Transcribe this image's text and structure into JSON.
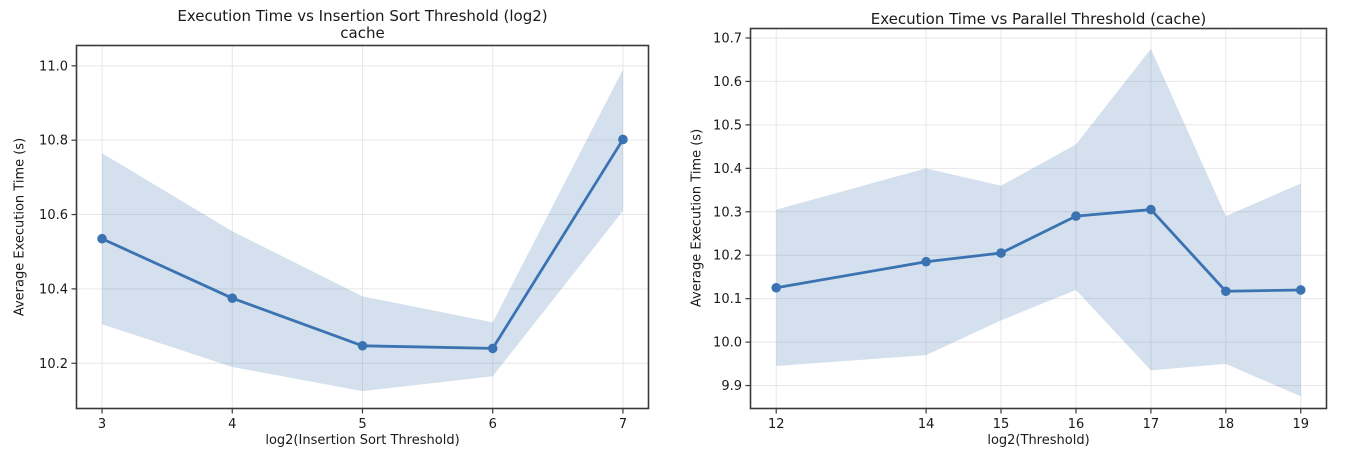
{
  "figure": {
    "background": "#ffffff",
    "grid_color": "#e7e7e7",
    "spine_color": "#3a3a3a",
    "text_color": "#1a1a1a"
  },
  "chart_data": [
    {
      "type": "line",
      "title": "Execution Time vs Insertion Sort Threshold (log2)",
      "subtitle": "cache",
      "xlabel": "log2(Insertion Sort Threshold)",
      "ylabel": "Average Execution Time (s)",
      "legend": null,
      "grid": true,
      "x": [
        3,
        4,
        5,
        6,
        7
      ],
      "y": [
        10.535,
        10.375,
        10.247,
        10.24,
        10.802
      ],
      "band_lower": [
        10.305,
        10.19,
        10.125,
        10.165,
        10.61
      ],
      "band_upper": [
        10.765,
        10.555,
        10.38,
        10.31,
        10.99
      ],
      "xlim": [
        2.8,
        7.2
      ],
      "ylim": [
        10.077,
        11.056
      ],
      "xticks": [
        3,
        4,
        5,
        6,
        7
      ],
      "xtick_labels": [
        "3",
        "4",
        "5",
        "6",
        "7"
      ],
      "yticks": [
        10.2,
        10.4,
        10.6,
        10.8,
        11.0
      ],
      "ytick_labels": [
        "10.2",
        "10.4",
        "10.6",
        "10.8",
        "11.0"
      ],
      "line_color": "#3b73b2",
      "band_color": "rgba(59,115,178,0.22)"
    },
    {
      "type": "line",
      "title": "Execution Time vs Parallel Threshold (cache)",
      "subtitle": "",
      "xlabel": "log2(Threshold)",
      "ylabel": "Average Execution Time (s)",
      "legend": null,
      "grid": true,
      "x": [
        12,
        14,
        15,
        16,
        17,
        18,
        19
      ],
      "y": [
        10.125,
        10.185,
        10.205,
        10.29,
        10.305,
        10.117,
        10.12
      ],
      "band_lower": [
        9.945,
        9.97,
        10.05,
        10.12,
        9.935,
        9.95,
        9.875
      ],
      "band_upper": [
        10.305,
        10.4,
        10.36,
        10.455,
        10.675,
        10.29,
        10.365
      ],
      "xlim": [
        11.65,
        19.35
      ],
      "ylim": [
        9.846,
        10.723
      ],
      "xticks": [
        12,
        14,
        15,
        16,
        17,
        18,
        19
      ],
      "xtick_labels": [
        "12",
        "14",
        "15",
        "16",
        "17",
        "18",
        "19"
      ],
      "yticks": [
        9.9,
        10.0,
        10.1,
        10.2,
        10.3,
        10.4,
        10.5,
        10.6,
        10.7
      ],
      "ytick_labels": [
        "9.9",
        "10.0",
        "10.1",
        "10.2",
        "10.3",
        "10.4",
        "10.5",
        "10.6",
        "10.7"
      ],
      "line_color": "#3b73b2",
      "band_color": "rgba(59,115,178,0.22)"
    }
  ]
}
